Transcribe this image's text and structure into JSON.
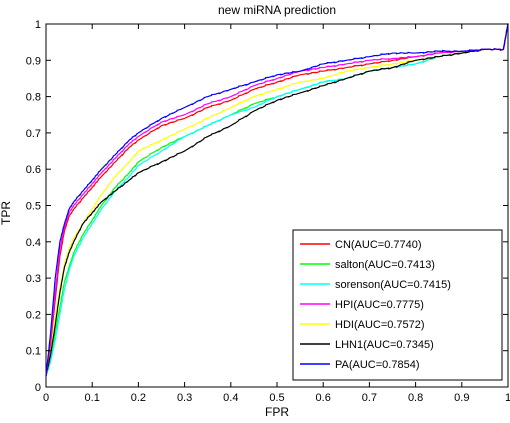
{
  "chart_data": {
    "type": "line",
    "title": "new miRNA prediction",
    "xlabel": "FPR",
    "ylabel": "TPR",
    "xlim": [
      0,
      1
    ],
    "ylim": [
      0,
      1
    ],
    "x_ticks": [
      "0",
      "0.1",
      "0.2",
      "0.3",
      "0.4",
      "0.5",
      "0.6",
      "0.7",
      "0.8",
      "0.9",
      "1"
    ],
    "y_ticks": [
      "0",
      "0.1",
      "0.2",
      "0.3",
      "0.4",
      "0.5",
      "0.6",
      "0.7",
      "0.8",
      "0.9",
      "1"
    ],
    "grid": false,
    "legend_position": "bottom-right",
    "series": [
      {
        "name": "CN(AUC=0.7740)",
        "color": "#ff0000",
        "x": [
          0,
          0.01,
          0.02,
          0.03,
          0.04,
          0.05,
          0.06,
          0.08,
          0.1,
          0.12,
          0.15,
          0.18,
          0.2,
          0.25,
          0.3,
          0.35,
          0.4,
          0.45,
          0.5,
          0.55,
          0.6,
          0.65,
          0.7,
          0.75,
          0.8,
          0.85,
          0.9,
          0.95,
          0.99,
          1
        ],
        "y": [
          0.03,
          0.12,
          0.24,
          0.36,
          0.43,
          0.47,
          0.49,
          0.52,
          0.55,
          0.58,
          0.62,
          0.66,
          0.68,
          0.72,
          0.74,
          0.77,
          0.79,
          0.82,
          0.84,
          0.86,
          0.87,
          0.88,
          0.89,
          0.9,
          0.91,
          0.92,
          0.925,
          0.93,
          0.93,
          1
        ]
      },
      {
        "name": "salton(AUC=0.7413)",
        "color": "#00ff00",
        "x": [
          0,
          0.01,
          0.02,
          0.03,
          0.04,
          0.05,
          0.06,
          0.08,
          0.1,
          0.12,
          0.15,
          0.18,
          0.2,
          0.25,
          0.3,
          0.35,
          0.4,
          0.45,
          0.5,
          0.55,
          0.6,
          0.65,
          0.7,
          0.75,
          0.8,
          0.85,
          0.9,
          0.95,
          0.99,
          1
        ],
        "y": [
          0.03,
          0.08,
          0.15,
          0.22,
          0.29,
          0.33,
          0.37,
          0.42,
          0.46,
          0.5,
          0.55,
          0.59,
          0.62,
          0.66,
          0.69,
          0.72,
          0.75,
          0.78,
          0.8,
          0.82,
          0.84,
          0.85,
          0.87,
          0.88,
          0.89,
          0.91,
          0.92,
          0.93,
          0.93,
          1
        ]
      },
      {
        "name": "sorenson(AUC=0.7415)",
        "color": "#00ffff",
        "x": [
          0,
          0.01,
          0.02,
          0.03,
          0.04,
          0.05,
          0.06,
          0.08,
          0.1,
          0.12,
          0.15,
          0.18,
          0.2,
          0.25,
          0.3,
          0.35,
          0.4,
          0.45,
          0.5,
          0.55,
          0.6,
          0.65,
          0.7,
          0.75,
          0.8,
          0.85,
          0.9,
          0.95,
          0.99,
          1
        ],
        "y": [
          0.03,
          0.07,
          0.13,
          0.2,
          0.27,
          0.32,
          0.36,
          0.41,
          0.45,
          0.49,
          0.54,
          0.58,
          0.61,
          0.65,
          0.69,
          0.72,
          0.75,
          0.77,
          0.8,
          0.82,
          0.84,
          0.85,
          0.87,
          0.88,
          0.89,
          0.91,
          0.92,
          0.93,
          0.93,
          1
        ]
      },
      {
        "name": "HPI(AUC=0.7775)",
        "color": "#ff00ff",
        "x": [
          0,
          0.01,
          0.02,
          0.03,
          0.04,
          0.05,
          0.06,
          0.08,
          0.1,
          0.12,
          0.15,
          0.18,
          0.2,
          0.25,
          0.3,
          0.35,
          0.4,
          0.45,
          0.5,
          0.55,
          0.6,
          0.65,
          0.7,
          0.75,
          0.8,
          0.85,
          0.9,
          0.95,
          0.99,
          1
        ],
        "y": [
          0.03,
          0.13,
          0.26,
          0.38,
          0.44,
          0.48,
          0.5,
          0.53,
          0.56,
          0.59,
          0.63,
          0.67,
          0.69,
          0.73,
          0.75,
          0.78,
          0.8,
          0.83,
          0.85,
          0.87,
          0.88,
          0.89,
          0.9,
          0.905,
          0.91,
          0.92,
          0.925,
          0.93,
          0.93,
          1
        ]
      },
      {
        "name": "HDI(AUC=0.7572)",
        "color": "#ffff00",
        "x": [
          0,
          0.01,
          0.02,
          0.03,
          0.04,
          0.05,
          0.06,
          0.08,
          0.1,
          0.12,
          0.15,
          0.18,
          0.2,
          0.25,
          0.3,
          0.35,
          0.4,
          0.45,
          0.5,
          0.55,
          0.6,
          0.65,
          0.7,
          0.75,
          0.8,
          0.85,
          0.9,
          0.95,
          0.99,
          1
        ],
        "y": [
          0.03,
          0.1,
          0.19,
          0.27,
          0.34,
          0.38,
          0.41,
          0.45,
          0.49,
          0.53,
          0.58,
          0.62,
          0.65,
          0.68,
          0.71,
          0.74,
          0.77,
          0.8,
          0.82,
          0.84,
          0.85,
          0.87,
          0.88,
          0.89,
          0.9,
          0.91,
          0.92,
          0.93,
          0.93,
          1
        ]
      },
      {
        "name": "LHN1(AUC=0.7345)",
        "color": "#000000",
        "x": [
          0,
          0.01,
          0.02,
          0.03,
          0.04,
          0.05,
          0.06,
          0.08,
          0.1,
          0.12,
          0.15,
          0.18,
          0.2,
          0.25,
          0.3,
          0.35,
          0.4,
          0.45,
          0.5,
          0.55,
          0.6,
          0.65,
          0.7,
          0.75,
          0.8,
          0.85,
          0.9,
          0.95,
          0.99,
          1
        ],
        "y": [
          0.03,
          0.09,
          0.17,
          0.26,
          0.33,
          0.37,
          0.4,
          0.45,
          0.48,
          0.51,
          0.54,
          0.57,
          0.59,
          0.62,
          0.65,
          0.69,
          0.72,
          0.76,
          0.79,
          0.81,
          0.83,
          0.85,
          0.87,
          0.88,
          0.9,
          0.91,
          0.92,
          0.93,
          0.93,
          1
        ]
      },
      {
        "name": "PA(AUC=0.7854)",
        "color": "#0000ff",
        "x": [
          0,
          0.01,
          0.02,
          0.03,
          0.04,
          0.05,
          0.06,
          0.08,
          0.1,
          0.12,
          0.15,
          0.18,
          0.2,
          0.25,
          0.3,
          0.35,
          0.4,
          0.45,
          0.5,
          0.55,
          0.6,
          0.65,
          0.7,
          0.75,
          0.8,
          0.85,
          0.9,
          0.95,
          0.99,
          1
        ],
        "y": [
          0.03,
          0.15,
          0.3,
          0.4,
          0.45,
          0.49,
          0.51,
          0.54,
          0.57,
          0.6,
          0.64,
          0.68,
          0.7,
          0.74,
          0.77,
          0.8,
          0.82,
          0.84,
          0.86,
          0.87,
          0.89,
          0.9,
          0.91,
          0.92,
          0.92,
          0.925,
          0.925,
          0.93,
          0.93,
          1
        ]
      }
    ]
  }
}
